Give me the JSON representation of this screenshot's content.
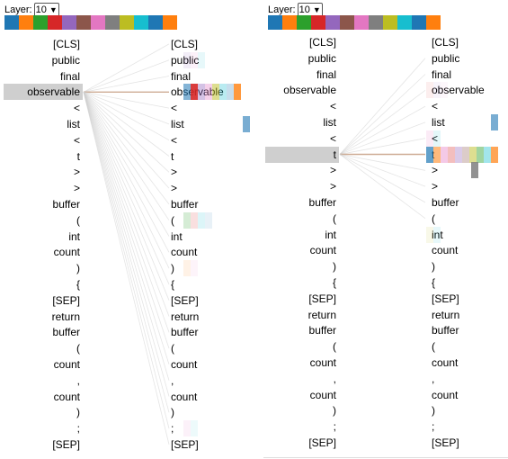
{
  "layer_label": "Layer:",
  "layer_value": "10",
  "head_colors": [
    "#1f77b4",
    "#ff7f0e",
    "#2ca02c",
    "#d62728",
    "#9467bd",
    "#8c564b",
    "#e377c2",
    "#7f7f7f",
    "#bcbd22",
    "#17becf",
    "#1f77b4",
    "#ff7f0e"
  ],
  "tokens": [
    "[CLS]",
    "public",
    "final",
    "observable",
    "<",
    "list",
    "<",
    "t",
    ">",
    ">",
    "buffer",
    "(",
    "int",
    "count",
    ")",
    "{",
    "[SEP]",
    "return",
    "buffer",
    "(",
    "count",
    ",",
    "count",
    ")",
    ";",
    "[SEP]"
  ],
  "panels": [
    {
      "name": "left",
      "selected_index": 3
    },
    {
      "name": "right",
      "selected_index": 7
    }
  ]
}
